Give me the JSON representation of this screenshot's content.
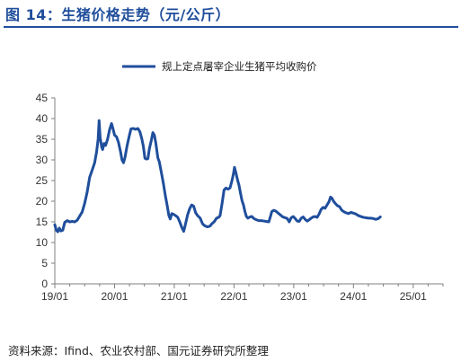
{
  "header": {
    "title": "图 14：生猪价格走势（元/公斤）"
  },
  "footer": {
    "source": "资料来源：Ifind、农业农村部、国元证券研究所整理"
  },
  "colors": {
    "series": "#1f4e9c",
    "title": "#1f4e9c",
    "axis": "#7f7f7f"
  },
  "chart_data": {
    "type": "line",
    "title": "",
    "xlabel": "",
    "ylabel": "",
    "grid": false,
    "legend_position": "top-center",
    "ylim": [
      0,
      45
    ],
    "yticks": [
      0,
      5,
      10,
      15,
      20,
      25,
      30,
      35,
      40,
      45
    ],
    "xlim": [
      "2019-01",
      "2025-07"
    ],
    "xtick_labels": [
      "19/01",
      "20/01",
      "21/01",
      "22/01",
      "23/01",
      "24/01",
      "25/01"
    ],
    "x_unit": "months since 2019-01",
    "series": [
      {
        "name": "规上定点屠宰企业生猪平均收购价",
        "color": "#1f4e9c",
        "points": [
          [
            0.0,
            14.3
          ],
          [
            0.3,
            13.0
          ],
          [
            0.6,
            12.6
          ],
          [
            0.9,
            13.5
          ],
          [
            1.2,
            12.8
          ],
          [
            1.6,
            13.0
          ],
          [
            2.0,
            14.9
          ],
          [
            2.5,
            15.3
          ],
          [
            3.0,
            15.0
          ],
          [
            3.5,
            15.1
          ],
          [
            4.0,
            15.0
          ],
          [
            4.5,
            15.4
          ],
          [
            5.0,
            16.4
          ],
          [
            5.5,
            17.4
          ],
          [
            6.0,
            19.5
          ],
          [
            6.5,
            22.2
          ],
          [
            7.0,
            25.8
          ],
          [
            7.5,
            27.5
          ],
          [
            8.0,
            29.3
          ],
          [
            8.4,
            32.0
          ],
          [
            8.7,
            35.0
          ],
          [
            8.9,
            39.5
          ],
          [
            9.1,
            35.5
          ],
          [
            9.4,
            33.2
          ],
          [
            9.6,
            32.5
          ],
          [
            9.9,
            34.0
          ],
          [
            10.2,
            33.5
          ],
          [
            10.6,
            35.0
          ],
          [
            11.0,
            37.3
          ],
          [
            11.4,
            38.8
          ],
          [
            11.7,
            37.5
          ],
          [
            12.0,
            36.0
          ],
          [
            12.4,
            35.6
          ],
          [
            12.8,
            34.2
          ],
          [
            13.2,
            32.0
          ],
          [
            13.5,
            30.0
          ],
          [
            13.8,
            29.3
          ],
          [
            14.1,
            30.6
          ],
          [
            14.5,
            33.3
          ],
          [
            14.9,
            35.5
          ],
          [
            15.3,
            37.5
          ],
          [
            15.8,
            37.6
          ],
          [
            16.2,
            37.4
          ],
          [
            16.7,
            37.6
          ],
          [
            17.1,
            36.8
          ],
          [
            17.5,
            35.0
          ],
          [
            17.8,
            33.2
          ],
          [
            18.1,
            30.4
          ],
          [
            18.4,
            30.2
          ],
          [
            18.7,
            30.3
          ],
          [
            19.0,
            32.7
          ],
          [
            19.4,
            34.8
          ],
          [
            19.7,
            36.6
          ],
          [
            20.0,
            36.0
          ],
          [
            20.3,
            34.0
          ],
          [
            20.7,
            30.5
          ],
          [
            21.0,
            29.5
          ],
          [
            21.4,
            27.0
          ],
          [
            21.8,
            24.4
          ],
          [
            22.2,
            21.4
          ],
          [
            22.6,
            18.8
          ],
          [
            22.9,
            16.6
          ],
          [
            23.2,
            15.7
          ],
          [
            23.5,
            17.0
          ],
          [
            23.9,
            16.8
          ],
          [
            24.3,
            16.5
          ],
          [
            24.7,
            16.1
          ],
          [
            25.1,
            15.0
          ],
          [
            25.5,
            13.7
          ],
          [
            25.9,
            12.7
          ],
          [
            26.3,
            14.7
          ],
          [
            26.7,
            16.8
          ],
          [
            27.1,
            18.2
          ],
          [
            27.5,
            19.1
          ],
          [
            27.9,
            18.8
          ],
          [
            28.3,
            17.2
          ],
          [
            28.7,
            16.5
          ],
          [
            29.2,
            15.9
          ],
          [
            29.7,
            14.5
          ],
          [
            30.2,
            14.0
          ],
          [
            30.7,
            13.8
          ],
          [
            31.2,
            14.0
          ],
          [
            31.6,
            14.6
          ],
          [
            32.0,
            15.0
          ],
          [
            32.5,
            15.9
          ],
          [
            32.9,
            16.1
          ],
          [
            33.2,
            16.5
          ],
          [
            33.6,
            19.4
          ],
          [
            34.0,
            22.7
          ],
          [
            34.4,
            23.2
          ],
          [
            34.8,
            22.9
          ],
          [
            35.2,
            23.2
          ],
          [
            35.6,
            25.0
          ],
          [
            35.9,
            26.7
          ],
          [
            36.1,
            28.2
          ],
          [
            36.4,
            26.8
          ],
          [
            36.7,
            25.2
          ],
          [
            37.0,
            23.9
          ],
          [
            37.3,
            22.0
          ],
          [
            37.6,
            20.2
          ],
          [
            37.9,
            19.1
          ],
          [
            38.2,
            17.5
          ],
          [
            38.5,
            16.3
          ],
          [
            38.8,
            15.9
          ],
          [
            39.2,
            16.2
          ],
          [
            39.6,
            16.3
          ],
          [
            40.0,
            15.8
          ],
          [
            40.5,
            15.5
          ],
          [
            41.0,
            15.3
          ],
          [
            41.5,
            15.3
          ],
          [
            42.0,
            15.2
          ],
          [
            42.5,
            15.1
          ],
          [
            43.0,
            15.0
          ],
          [
            43.3,
            16.2
          ],
          [
            43.6,
            17.5
          ],
          [
            44.0,
            17.8
          ],
          [
            44.4,
            17.6
          ],
          [
            44.8,
            17.2
          ],
          [
            45.3,
            16.7
          ],
          [
            45.8,
            16.2
          ],
          [
            46.3,
            16.0
          ],
          [
            46.7,
            15.8
          ],
          [
            47.1,
            15.0
          ],
          [
            47.5,
            16.0
          ],
          [
            47.9,
            16.3
          ],
          [
            48.3,
            15.8
          ],
          [
            48.7,
            15.2
          ],
          [
            49.1,
            15.1
          ],
          [
            49.5,
            15.9
          ],
          [
            49.9,
            16.2
          ],
          [
            50.3,
            15.6
          ],
          [
            50.7,
            15.2
          ],
          [
            51.1,
            15.5
          ],
          [
            51.5,
            15.9
          ],
          [
            51.9,
            16.2
          ],
          [
            52.3,
            16.3
          ],
          [
            52.7,
            16.1
          ],
          [
            53.1,
            16.9
          ],
          [
            53.5,
            18.0
          ],
          [
            53.9,
            18.5
          ],
          [
            54.3,
            18.3
          ],
          [
            54.7,
            19.1
          ],
          [
            55.1,
            19.9
          ],
          [
            55.4,
            21.0
          ],
          [
            55.7,
            20.7
          ],
          [
            56.0,
            20.0
          ],
          [
            56.4,
            19.4
          ],
          [
            56.8,
            18.9
          ],
          [
            57.2,
            18.7
          ],
          [
            57.6,
            17.9
          ],
          [
            58.0,
            17.5
          ],
          [
            58.5,
            17.2
          ],
          [
            59.0,
            17.0
          ],
          [
            59.5,
            17.3
          ],
          [
            60.0,
            17.1
          ],
          [
            60.5,
            16.9
          ],
          [
            61.0,
            16.5
          ],
          [
            61.5,
            16.3
          ],
          [
            62.0,
            16.1
          ],
          [
            62.5,
            16.0
          ],
          [
            63.0,
            15.9
          ],
          [
            63.5,
            15.9
          ],
          [
            64.0,
            15.8
          ],
          [
            64.5,
            15.6
          ],
          [
            65.0,
            15.8
          ],
          [
            65.4,
            16.2
          ]
        ]
      }
    ]
  }
}
